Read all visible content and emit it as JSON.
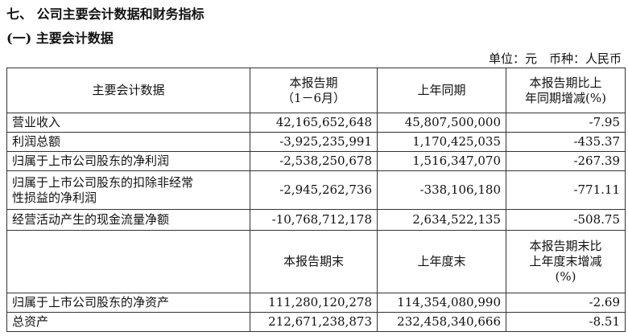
{
  "header": {
    "section": "七、 公司主要会计数据和财务指标",
    "subsection": "(一) 主要会计数据",
    "unit": "单位：元　币种：人民币"
  },
  "table": {
    "header": [
      "主要会计数据",
      "本报告期\n（1－6月）",
      "上年同期",
      "本报告期比上\n年同期增减(%)"
    ],
    "rows": [
      [
        "营业收入",
        "42,165,652,648",
        "45,807,500,000",
        "-7.95"
      ],
      [
        "利润总额",
        "-3,925,235,991",
        "1,170,425,035",
        "-435.37"
      ],
      [
        "归属于上市公司股东的净利润",
        "-2,538,250,678",
        "1,516,347,070",
        "-267.39"
      ],
      [
        "归属于上市公司股东的扣除非经常\n性损益的净利润",
        "-2,945,262,736",
        "-338,106,180",
        "-771.11"
      ],
      [
        "经营活动产生的现金流量净额",
        "-10,768,712,178",
        "2,634,522,135",
        "-508.75"
      ]
    ],
    "header2": [
      "本报告期末",
      "上年度末",
      "本报告期末比\n上年度末增减\n(%)"
    ],
    "rows2": [
      [
        "归属于上市公司股东的净资产",
        "111,280,120,278",
        "114,354,080,990",
        "-2.69"
      ],
      [
        "总资产",
        "212,671,238,873",
        "232,458,340,666",
        "-8.51"
      ]
    ]
  }
}
